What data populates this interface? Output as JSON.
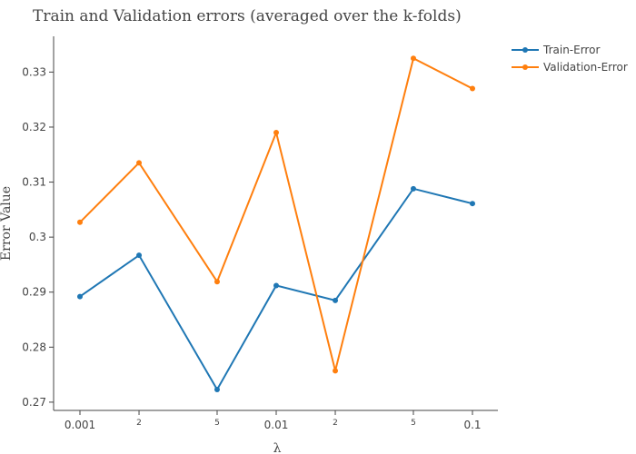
{
  "chart_data": {
    "type": "line",
    "title": "Train and Validation errors (averaged over the k-folds)",
    "xlabel": "λ",
    "ylabel": "Error Value",
    "x_scale": "log",
    "x": [
      0.001,
      0.002,
      0.005,
      0.01,
      0.02,
      0.05,
      0.1
    ],
    "x_tick_labels": [
      "0.001",
      "2",
      "5",
      "0.01",
      "2",
      "5",
      "0.1"
    ],
    "y_ticks": [
      0.27,
      0.28,
      0.29,
      0.3,
      0.31,
      0.32,
      0.33
    ],
    "y_tick_labels": [
      "0.27",
      "0.28",
      "0.29",
      "0.3",
      "0.31",
      "0.32",
      "0.33"
    ],
    "ylim": [
      0.2685,
      0.3365
    ],
    "grid": false,
    "legend_position": "top-right",
    "series": [
      {
        "name": "Train-Error",
        "color": "#1f77b4",
        "values": [
          0.2892,
          0.2967,
          0.2723,
          0.2912,
          0.2885,
          0.3088,
          0.3061
        ]
      },
      {
        "name": "Validation-Error",
        "color": "#ff7f0e",
        "values": [
          0.3027,
          0.3135,
          0.2919,
          0.319,
          0.2757,
          0.3325,
          0.327
        ]
      }
    ]
  }
}
